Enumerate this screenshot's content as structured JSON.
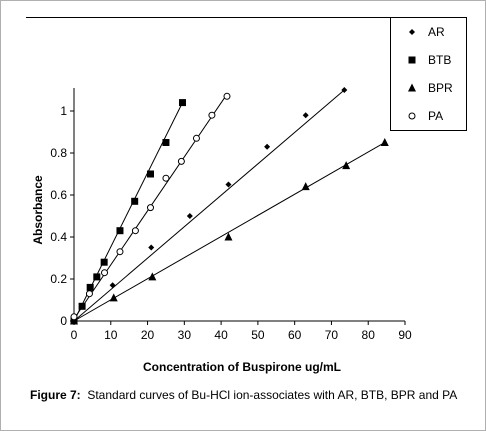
{
  "caption": {
    "label": "Figure 7:",
    "text": "Standard curves of Bu-HCl ion-associates with AR, BTB, BPR and PA"
  },
  "chart_data": {
    "type": "scatter",
    "xlabel": "Concentration of Buspirone  ug/mL",
    "ylabel": "Absorbance",
    "xlim": [
      0,
      90
    ],
    "ylim": [
      0,
      1.1
    ],
    "xticks": [
      0,
      10,
      20,
      30,
      40,
      50,
      60,
      70,
      80,
      90
    ],
    "xtick_labels": [
      "0",
      "10",
      "20",
      "30",
      "40",
      "50",
      "60",
      "70",
      "80",
      "90"
    ],
    "yticks": [
      0,
      0.2,
      0.4,
      0.6,
      0.8,
      1
    ],
    "ytick_labels": [
      "0",
      "0.2",
      "0.4",
      "0.6",
      "0.8",
      "1"
    ],
    "grid": false,
    "legend_position": "top-right",
    "series": [
      {
        "name": "AR",
        "marker": "diamond",
        "color": "#000000",
        "x": [
          0,
          10.5,
          21,
          31.5,
          42,
          52.5,
          63,
          73.5
        ],
        "y": [
          0.02,
          0.17,
          0.35,
          0.5,
          0.65,
          0.83,
          0.98,
          1.1
        ],
        "fit": [
          [
            0,
            0.0
          ],
          [
            73.5,
            1.1
          ]
        ]
      },
      {
        "name": "BTB",
        "marker": "square",
        "color": "#000000",
        "x": [
          0,
          2.2,
          4.4,
          6.2,
          8.2,
          12.5,
          16.5,
          20.8,
          25,
          29.5
        ],
        "y": [
          0.0,
          0.07,
          0.16,
          0.21,
          0.28,
          0.43,
          0.57,
          0.7,
          0.85,
          1.04
        ],
        "fit": [
          [
            0,
            0.0
          ],
          [
            29.5,
            1.04
          ]
        ]
      },
      {
        "name": "BPR",
        "marker": "triangle",
        "color": "#000000",
        "x": [
          0,
          10.8,
          21.3,
          42,
          63,
          74,
          84.5
        ],
        "y": [
          0.0,
          0.11,
          0.21,
          0.4,
          0.64,
          0.74,
          0.85
        ],
        "fit": [
          [
            0,
            0.0
          ],
          [
            84.5,
            0.85
          ]
        ]
      },
      {
        "name": "PA",
        "marker": "circle-open",
        "color": "#000000",
        "x": [
          0,
          4.2,
          8.3,
          12.5,
          16.7,
          20.8,
          25,
          29.2,
          33.3,
          37.5,
          41.6
        ],
        "y": [
          0.02,
          0.13,
          0.23,
          0.33,
          0.43,
          0.54,
          0.68,
          0.76,
          0.87,
          0.98,
          1.07
        ],
        "fit": [
          [
            0,
            0.01
          ],
          [
            41.6,
            1.08
          ]
        ]
      }
    ]
  }
}
